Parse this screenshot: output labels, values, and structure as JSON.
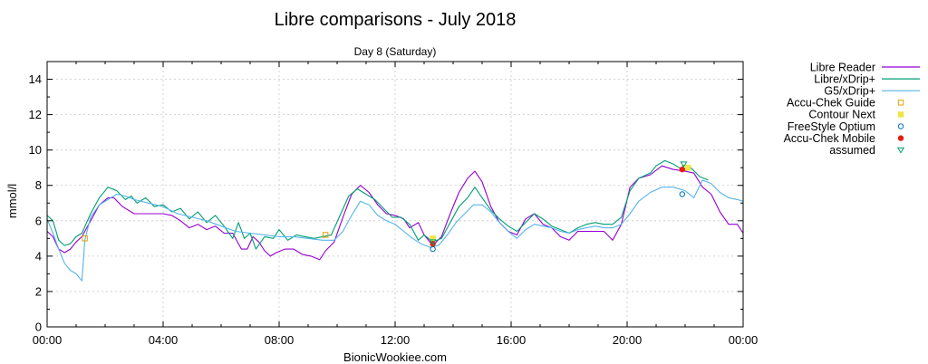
{
  "chart_data": {
    "type": "line",
    "title": "Libre comparisons - July 2018",
    "subtitle": "Day 8 (Saturday)",
    "xlabel": "BionicWookiee.com",
    "ylabel": "mmol/l",
    "ylim": [
      0,
      15
    ],
    "xlim": [
      "00:00",
      "24:00"
    ],
    "y_ticks": [
      0,
      2,
      4,
      6,
      8,
      10,
      12,
      14
    ],
    "x_ticks": [
      "00:00",
      "04:00",
      "08:00",
      "12:00",
      "16:00",
      "20:00",
      "00:00"
    ],
    "grid": true,
    "legend_position": "outside-right",
    "series": [
      {
        "name": "Libre Reader",
        "kind": "line",
        "color": "#9400d3",
        "points": [
          [
            0.0,
            5.4
          ],
          [
            0.2,
            5.1
          ],
          [
            0.4,
            4.4
          ],
          [
            0.6,
            4.2
          ],
          [
            0.8,
            4.4
          ],
          [
            1.0,
            4.8
          ],
          [
            1.2,
            5.1
          ],
          [
            1.5,
            6.0
          ],
          [
            1.8,
            6.9
          ],
          [
            2.1,
            7.3
          ],
          [
            2.3,
            7.3
          ],
          [
            2.6,
            6.8
          ],
          [
            3.0,
            6.4
          ],
          [
            3.5,
            6.4
          ],
          [
            4.0,
            6.4
          ],
          [
            4.3,
            6.3
          ],
          [
            4.6,
            6.0
          ],
          [
            4.9,
            5.6
          ],
          [
            5.2,
            5.8
          ],
          [
            5.5,
            5.5
          ],
          [
            5.8,
            5.7
          ],
          [
            6.1,
            5.3
          ],
          [
            6.4,
            5.3
          ],
          [
            6.7,
            4.4
          ],
          [
            6.9,
            4.4
          ],
          [
            7.1,
            5.1
          ],
          [
            7.3,
            4.8
          ],
          [
            7.5,
            4.3
          ],
          [
            7.7,
            4.0
          ],
          [
            7.9,
            4.2
          ],
          [
            8.2,
            4.4
          ],
          [
            8.5,
            4.4
          ],
          [
            8.8,
            4.1
          ],
          [
            9.1,
            4.0
          ],
          [
            9.4,
            3.8
          ],
          [
            9.6,
            4.3
          ],
          [
            9.9,
            4.8
          ],
          [
            10.2,
            6.2
          ],
          [
            10.5,
            7.5
          ],
          [
            10.8,
            8.0
          ],
          [
            11.1,
            7.6
          ],
          [
            11.4,
            6.9
          ],
          [
            11.7,
            6.4
          ],
          [
            12.0,
            6.3
          ],
          [
            12.3,
            6.1
          ],
          [
            12.5,
            5.6
          ],
          [
            12.8,
            5.9
          ],
          [
            13.0,
            5.2
          ],
          [
            13.3,
            4.6
          ],
          [
            13.6,
            5.1
          ],
          [
            13.9,
            6.4
          ],
          [
            14.2,
            7.6
          ],
          [
            14.5,
            8.4
          ],
          [
            14.75,
            8.8
          ],
          [
            15.0,
            8.2
          ],
          [
            15.3,
            6.8
          ],
          [
            15.6,
            5.9
          ],
          [
            15.9,
            5.4
          ],
          [
            16.2,
            5.2
          ],
          [
            16.5,
            6.1
          ],
          [
            16.8,
            6.4
          ],
          [
            17.1,
            5.8
          ],
          [
            17.4,
            5.6
          ],
          [
            17.7,
            5.1
          ],
          [
            18.0,
            4.9
          ],
          [
            18.3,
            5.4
          ],
          [
            18.6,
            5.4
          ],
          [
            18.9,
            5.4
          ],
          [
            19.2,
            5.4
          ],
          [
            19.5,
            4.9
          ],
          [
            19.8,
            5.8
          ],
          [
            20.1,
            7.9
          ],
          [
            20.4,
            8.4
          ],
          [
            20.8,
            8.6
          ],
          [
            21.2,
            9.1
          ],
          [
            21.6,
            8.9
          ],
          [
            22.0,
            8.8
          ],
          [
            22.3,
            8.7
          ],
          [
            22.6,
            7.9
          ],
          [
            22.9,
            7.5
          ],
          [
            23.2,
            6.5
          ],
          [
            23.5,
            5.8
          ],
          [
            23.8,
            5.8
          ],
          [
            24.0,
            5.3
          ]
        ]
      },
      {
        "name": "Libre/xDrip+",
        "kind": "line",
        "color": "#009e73",
        "points": [
          [
            0.0,
            6.3
          ],
          [
            0.2,
            6.0
          ],
          [
            0.4,
            4.9
          ],
          [
            0.6,
            4.6
          ],
          [
            0.8,
            4.7
          ],
          [
            1.0,
            5.1
          ],
          [
            1.2,
            5.3
          ],
          [
            1.5,
            6.4
          ],
          [
            1.8,
            7.3
          ],
          [
            2.1,
            7.9
          ],
          [
            2.4,
            7.7
          ],
          [
            2.7,
            7.2
          ],
          [
            2.9,
            7.4
          ],
          [
            3.1,
            7.0
          ],
          [
            3.4,
            7.3
          ],
          [
            3.7,
            6.8
          ],
          [
            4.0,
            6.9
          ],
          [
            4.3,
            6.5
          ],
          [
            4.6,
            6.7
          ],
          [
            4.9,
            6.1
          ],
          [
            5.2,
            6.5
          ],
          [
            5.5,
            5.9
          ],
          [
            5.8,
            6.3
          ],
          [
            6.1,
            5.7
          ],
          [
            6.4,
            5.0
          ],
          [
            6.6,
            5.9
          ],
          [
            6.8,
            5.0
          ],
          [
            7.0,
            5.3
          ],
          [
            7.2,
            4.4
          ],
          [
            7.5,
            5.1
          ],
          [
            7.8,
            5.0
          ],
          [
            8.0,
            5.5
          ],
          [
            8.3,
            4.9
          ],
          [
            8.6,
            5.2
          ],
          [
            8.9,
            5.1
          ],
          [
            9.2,
            5.0
          ],
          [
            9.5,
            5.1
          ],
          [
            9.8,
            5.2
          ],
          [
            10.1,
            6.3
          ],
          [
            10.4,
            7.4
          ],
          [
            10.7,
            7.8
          ],
          [
            11.0,
            7.5
          ],
          [
            11.3,
            7.2
          ],
          [
            11.6,
            6.7
          ],
          [
            11.9,
            6.2
          ],
          [
            12.2,
            6.2
          ],
          [
            12.5,
            5.8
          ],
          [
            12.8,
            4.9
          ],
          [
            13.0,
            5.2
          ],
          [
            13.3,
            4.8
          ],
          [
            13.6,
            5.0
          ],
          [
            13.9,
            5.9
          ],
          [
            14.2,
            6.8
          ],
          [
            14.5,
            7.3
          ],
          [
            14.75,
            7.9
          ],
          [
            15.0,
            7.3
          ],
          [
            15.3,
            6.6
          ],
          [
            15.6,
            6.1
          ],
          [
            15.9,
            5.7
          ],
          [
            16.2,
            5.4
          ],
          [
            16.5,
            5.9
          ],
          [
            16.8,
            6.4
          ],
          [
            17.1,
            6.1
          ],
          [
            17.4,
            5.7
          ],
          [
            17.7,
            5.5
          ],
          [
            18.0,
            5.3
          ],
          [
            18.3,
            5.6
          ],
          [
            18.6,
            5.8
          ],
          [
            18.9,
            5.9
          ],
          [
            19.2,
            5.8
          ],
          [
            19.5,
            5.8
          ],
          [
            19.8,
            6.2
          ],
          [
            20.1,
            7.7
          ],
          [
            20.4,
            8.4
          ],
          [
            20.8,
            8.7
          ],
          [
            21.0,
            9.1
          ],
          [
            21.3,
            9.4
          ],
          [
            21.6,
            9.2
          ],
          [
            21.9,
            8.9
          ],
          [
            22.2,
            9.0
          ],
          [
            22.5,
            8.5
          ],
          [
            22.8,
            8.3
          ]
        ]
      },
      {
        "name": "G5/xDrip+",
        "kind": "line",
        "color": "#56b4e9",
        "points": [
          [
            0.0,
            6.1
          ],
          [
            0.2,
            5.3
          ],
          [
            0.4,
            4.4
          ],
          [
            0.6,
            3.6
          ],
          [
            0.8,
            3.2
          ],
          [
            1.0,
            3.0
          ],
          [
            1.2,
            2.6
          ],
          [
            1.3,
            4.9
          ],
          [
            1.5,
            6.2
          ],
          [
            1.8,
            6.9
          ],
          [
            2.1,
            7.2
          ],
          [
            2.4,
            7.5
          ],
          [
            2.7,
            7.4
          ],
          [
            3.0,
            7.2
          ],
          [
            3.5,
            7.0
          ],
          [
            4.0,
            6.8
          ],
          [
            4.5,
            6.4
          ],
          [
            5.0,
            6.2
          ],
          [
            5.5,
            6.0
          ],
          [
            6.0,
            5.7
          ],
          [
            6.5,
            5.4
          ],
          [
            7.0,
            5.3
          ],
          [
            7.5,
            5.2
          ],
          [
            8.0,
            5.1
          ],
          [
            8.5,
            5.1
          ],
          [
            9.0,
            5.0
          ],
          [
            9.5,
            4.9
          ],
          [
            9.9,
            4.9
          ],
          [
            10.2,
            5.4
          ],
          [
            10.5,
            6.3
          ],
          [
            10.8,
            7.1
          ],
          [
            11.1,
            6.9
          ],
          [
            11.4,
            6.3
          ],
          [
            11.7,
            6.0
          ],
          [
            12.0,
            5.8
          ],
          [
            12.3,
            5.4
          ],
          [
            12.6,
            5.0
          ],
          [
            12.9,
            4.7
          ],
          [
            13.2,
            4.5
          ],
          [
            13.5,
            4.6
          ],
          [
            13.8,
            5.2
          ],
          [
            14.1,
            5.9
          ],
          [
            14.4,
            6.4
          ],
          [
            14.7,
            6.9
          ],
          [
            15.0,
            6.9
          ],
          [
            15.3,
            6.5
          ],
          [
            15.6,
            5.9
          ],
          [
            15.9,
            5.4
          ],
          [
            16.2,
            5.0
          ],
          [
            16.5,
            5.5
          ],
          [
            16.8,
            5.8
          ],
          [
            17.1,
            5.7
          ],
          [
            17.4,
            5.6
          ],
          [
            17.7,
            5.4
          ],
          [
            18.0,
            5.3
          ],
          [
            18.3,
            5.5
          ],
          [
            18.6,
            5.6
          ],
          [
            18.9,
            5.7
          ],
          [
            19.2,
            5.6
          ],
          [
            19.5,
            5.6
          ],
          [
            19.8,
            5.8
          ],
          [
            20.1,
            6.4
          ],
          [
            20.4,
            7.1
          ],
          [
            20.8,
            7.6
          ],
          [
            21.2,
            7.9
          ],
          [
            21.6,
            7.9
          ],
          [
            22.0,
            7.7
          ],
          [
            22.3,
            7.3
          ],
          [
            22.6,
            8.3
          ],
          [
            22.9,
            8.1
          ],
          [
            23.2,
            7.6
          ],
          [
            23.5,
            7.3
          ],
          [
            23.8,
            7.2
          ],
          [
            24.0,
            7.1
          ]
        ]
      },
      {
        "name": "Accu-Chek Guide",
        "kind": "marker",
        "marker": "open-square",
        "color": "#e69f00",
        "points": [
          [
            1.3,
            5.0
          ],
          [
            9.6,
            5.2
          ],
          [
            22.0,
            9.0
          ]
        ]
      },
      {
        "name": "Contour Next",
        "kind": "marker",
        "marker": "filled-square",
        "color": "#f0e442",
        "points": [
          [
            13.3,
            5.0
          ],
          [
            22.1,
            9.0
          ]
        ]
      },
      {
        "name": "FreeStyle Optium",
        "kind": "marker",
        "marker": "open-circle",
        "color": "#0072b2",
        "points": [
          [
            13.3,
            4.4
          ],
          [
            21.9,
            7.5
          ]
        ]
      },
      {
        "name": "Accu-Chek Mobile",
        "kind": "marker",
        "marker": "filled-circle",
        "color": "#e51e10",
        "points": [
          [
            13.3,
            4.7
          ],
          [
            21.9,
            8.9
          ]
        ]
      },
      {
        "name": "assumed",
        "kind": "marker",
        "marker": "open-triangle-down",
        "color": "#009e73",
        "points": [
          [
            13.3,
            4.8
          ],
          [
            21.95,
            9.2
          ]
        ]
      }
    ]
  }
}
